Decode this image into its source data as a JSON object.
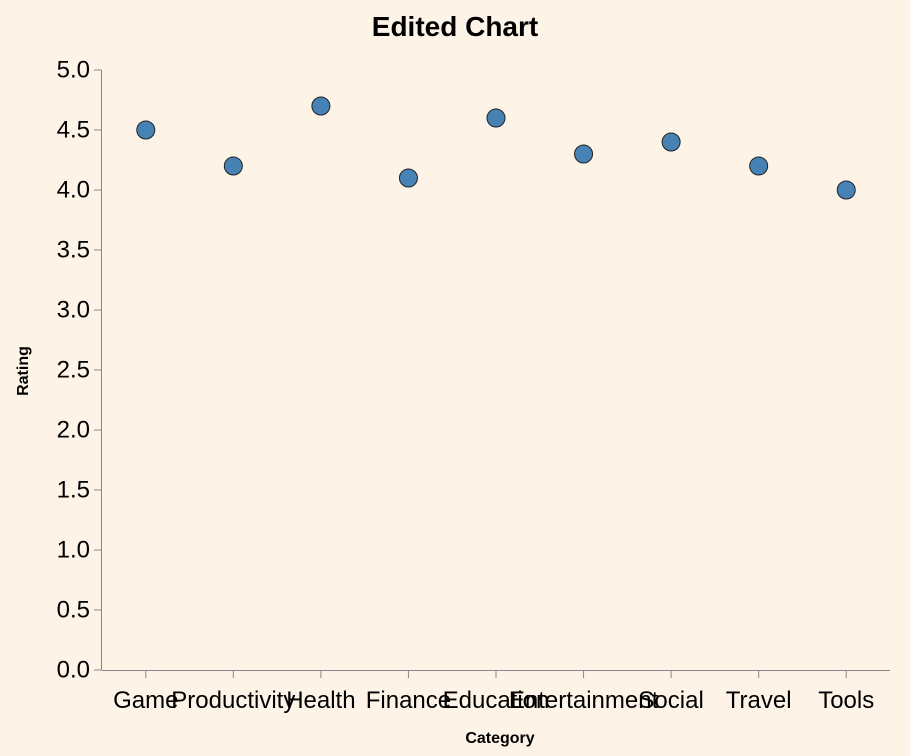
{
  "chart_data": {
    "type": "scatter",
    "title": "Edited Chart",
    "xlabel": "Category",
    "ylabel": "Rating",
    "categories": [
      "Game",
      "Productivity",
      "Health",
      "Finance",
      "Education",
      "Entertainment",
      "Social",
      "Travel",
      "Tools"
    ],
    "values": [
      4.5,
      4.2,
      4.7,
      4.1,
      4.6,
      4.3,
      4.4,
      4.2,
      4.0
    ],
    "ylim": [
      0,
      5
    ],
    "yticks": [
      "0.0",
      "0.5",
      "1.0",
      "1.5",
      "2.0",
      "2.5",
      "3.0",
      "3.5",
      "4.0",
      "4.5",
      "5.0"
    ],
    "grid": false,
    "point_color": "#4682b4",
    "point_stroke": "#222222",
    "background": "#fdf3e7"
  }
}
